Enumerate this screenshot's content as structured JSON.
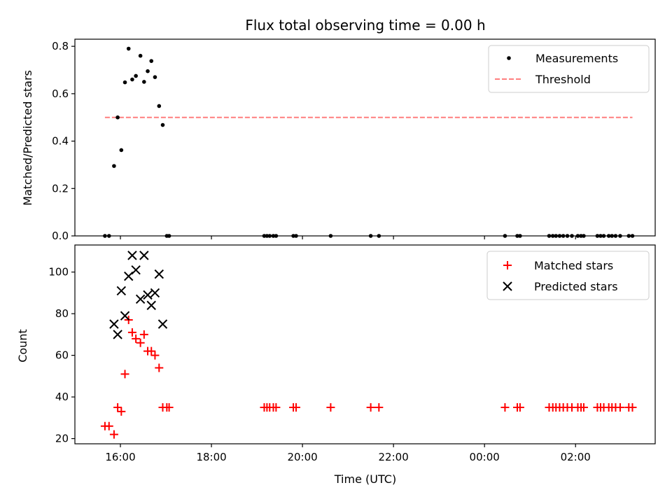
{
  "chart_data": [
    {
      "type": "scatter",
      "title": "Flux total observing time = 0.00 h",
      "xlabel": "",
      "ylabel": "Matched/Predicted stars",
      "ylim": [
        0,
        0.83
      ],
      "yticks": [
        0.0,
        0.2,
        0.4,
        0.6,
        0.8
      ],
      "ytick_labels": [
        "0.0",
        "0.2",
        "0.4",
        "0.6",
        "0.8"
      ],
      "legend": {
        "placement": "upper right",
        "entries": [
          {
            "label": "Measurements",
            "color": "#000000",
            "marker": "dot"
          },
          {
            "label": "Threshold",
            "color": "#ff7f7f",
            "marker": "dashed-line"
          }
        ]
      },
      "threshold": {
        "name": "Threshold",
        "value": 0.5,
        "x_from": 15.66,
        "x_to": 27.25,
        "color": "#ff7f7f"
      },
      "series": [
        {
          "name": "Measurements",
          "color": "#000000",
          "x": [
            15.66,
            15.75,
            15.86,
            15.94,
            16.02,
            16.1,
            16.18,
            16.26,
            16.34,
            16.44,
            16.52,
            16.6,
            16.68,
            16.76,
            16.85,
            16.93,
            17.02,
            17.07,
            19.16,
            19.22,
            19.28,
            19.36,
            19.42,
            19.8,
            19.86,
            20.62,
            21.5,
            21.68,
            24.45,
            24.72,
            24.78,
            25.42,
            25.5,
            25.57,
            25.65,
            25.73,
            25.82,
            25.92,
            26.05,
            26.12,
            26.18,
            26.48,
            26.55,
            26.62,
            26.73,
            26.8,
            26.88,
            26.98,
            27.17,
            27.25
          ],
          "y": [
            0.0,
            0.0,
            0.295,
            0.5,
            0.362,
            0.648,
            0.79,
            0.66,
            0.675,
            0.76,
            0.65,
            0.695,
            0.738,
            0.67,
            0.548,
            0.468,
            0.0,
            0.0,
            0.0,
            0.0,
            0.0,
            0.0,
            0.0,
            0.0,
            0.0,
            0.0,
            0.0,
            0.0,
            0.0,
            0.0,
            0.0,
            0.0,
            0.0,
            0.0,
            0.0,
            0.0,
            0.0,
            0.0,
            0.0,
            0.0,
            0.0,
            0.0,
            0.0,
            0.0,
            0.0,
            0.0,
            0.0,
            0.0,
            0.0,
            0.0
          ]
        }
      ]
    },
    {
      "type": "scatter",
      "title": "",
      "xlabel": "Time (UTC)",
      "ylabel": "Count",
      "xlim": [
        15.0,
        27.75
      ],
      "ylim": [
        17.5,
        113.0
      ],
      "xticks": [
        16,
        18,
        20,
        22,
        24,
        26
      ],
      "xtick_labels": [
        "16:00",
        "18:00",
        "20:00",
        "22:00",
        "00:00",
        "02:00"
      ],
      "yticks": [
        20,
        40,
        60,
        80,
        100
      ],
      "ytick_labels": [
        "20",
        "40",
        "60",
        "80",
        "100"
      ],
      "legend": {
        "placement": "upper right",
        "entries": [
          {
            "label": "Matched stars",
            "color": "#ff0000",
            "marker": "plus"
          },
          {
            "label": "Predicted stars",
            "color": "#000000",
            "marker": "x"
          }
        ]
      },
      "series": [
        {
          "name": "Matched stars",
          "color": "#ff0000",
          "marker": "plus",
          "x": [
            15.66,
            15.75,
            15.86,
            15.94,
            16.02,
            16.1,
            16.18,
            16.26,
            16.34,
            16.44,
            16.52,
            16.6,
            16.68,
            16.76,
            16.85,
            16.93,
            17.02,
            17.07,
            19.16,
            19.22,
            19.28,
            19.36,
            19.42,
            19.8,
            19.86,
            20.62,
            21.5,
            21.68,
            24.45,
            24.72,
            24.78,
            25.42,
            25.5,
            25.57,
            25.65,
            25.73,
            25.82,
            25.92,
            26.05,
            26.12,
            26.18,
            26.48,
            26.55,
            26.62,
            26.73,
            26.8,
            26.88,
            26.98,
            27.17,
            27.25
          ],
          "y": [
            26,
            26,
            22,
            35,
            33,
            51,
            77,
            71,
            68,
            66,
            70,
            62,
            62,
            60,
            54,
            35,
            35,
            35,
            35,
            35,
            35,
            35,
            35,
            35,
            35,
            35,
            35,
            35,
            35,
            35,
            35,
            35,
            35,
            35,
            35,
            35,
            35,
            35,
            35,
            35,
            35,
            35,
            35,
            35,
            35,
            35,
            35,
            35,
            35,
            35
          ]
        },
        {
          "name": "Predicted stars",
          "color": "#000000",
          "marker": "x",
          "x": [
            15.86,
            15.94,
            16.02,
            16.1,
            16.18,
            16.26,
            16.34,
            16.44,
            16.52,
            16.6,
            16.68,
            16.76,
            16.85,
            16.93
          ],
          "y": [
            75,
            70,
            91,
            79,
            98,
            108,
            101,
            87,
            108,
            89,
            84,
            90,
            99,
            75
          ]
        }
      ]
    }
  ]
}
